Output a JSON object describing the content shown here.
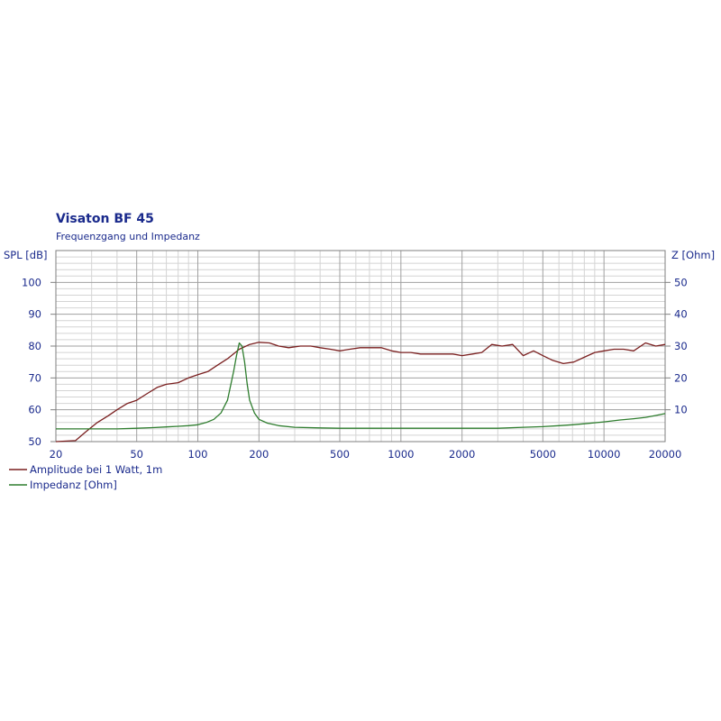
{
  "chart_data": {
    "type": "line",
    "title": "Visaton BF 45",
    "subtitle": "Frequenzgang und Impedanz",
    "ylabel_left": "SPL [dB]",
    "ylabel_right": "Z [Ohm]",
    "x_scale": "log",
    "xlim": [
      20,
      20000
    ],
    "ylim_left": [
      50,
      110
    ],
    "ylim_right": [
      0,
      60
    ],
    "x_ticks": [
      {
        "value": 20,
        "label": "20"
      },
      {
        "value": 50,
        "label": "50"
      },
      {
        "value": 100,
        "label": "100"
      },
      {
        "value": 200,
        "label": "200"
      },
      {
        "value": 500,
        "label": "500"
      },
      {
        "value": 1000,
        "label": "1000"
      },
      {
        "value": 2000,
        "label": "2000"
      },
      {
        "value": 5000,
        "label": "5000"
      },
      {
        "value": 10000,
        "label": "10000"
      },
      {
        "value": 20000,
        "label": "20000"
      }
    ],
    "y_ticks_left": [
      {
        "value": 50,
        "label": "50"
      },
      {
        "value": 60,
        "label": "60"
      },
      {
        "value": 70,
        "label": "70"
      },
      {
        "value": 80,
        "label": "80"
      },
      {
        "value": 90,
        "label": "90"
      },
      {
        "value": 100,
        "label": "100"
      }
    ],
    "y_ticks_right": [
      {
        "value": 10,
        "label": "10"
      },
      {
        "value": 20,
        "label": "20"
      },
      {
        "value": 30,
        "label": "30"
      },
      {
        "value": 40,
        "label": "40"
      },
      {
        "value": 50,
        "label": "50"
      }
    ],
    "grid": true,
    "legend_position": "bottom-left",
    "series": [
      {
        "name": "Amplitude bei 1 Watt, 1m",
        "axis": "left",
        "color": "#7a1f1f",
        "x": [
          20,
          25,
          28,
          32,
          36,
          40,
          45,
          50,
          56,
          63,
          70,
          80,
          90,
          100,
          112,
          125,
          140,
          160,
          180,
          200,
          225,
          250,
          280,
          320,
          360,
          400,
          450,
          500,
          560,
          630,
          700,
          800,
          900,
          1000,
          1120,
          1250,
          1400,
          1600,
          1800,
          2000,
          2250,
          2500,
          2800,
          3150,
          3550,
          4000,
          4500,
          5000,
          5600,
          6300,
          7100,
          8000,
          9000,
          10000,
          11200,
          12500,
          14000,
          16000,
          18000,
          20000
        ],
        "y": [
          50,
          50.3,
          53,
          56,
          58,
          60,
          62,
          63,
          65,
          67,
          68,
          68.5,
          70,
          71,
          72,
          74,
          76,
          79,
          80.5,
          81.2,
          81,
          80,
          79.5,
          80,
          80,
          79.5,
          79,
          78.5,
          79,
          79.5,
          79.5,
          79.5,
          78.5,
          78,
          78,
          77.5,
          77.5,
          77.5,
          77.5,
          77,
          77.5,
          78,
          80.5,
          80,
          80.5,
          77,
          78.5,
          77,
          75.5,
          74.5,
          75,
          76.5,
          78,
          78.5,
          79,
          79,
          78.5,
          81,
          80,
          80.5
        ]
      },
      {
        "name": "Impedanz [Ohm]",
        "axis": "right",
        "color": "#2e7d2e",
        "x": [
          20,
          30,
          40,
          50,
          60,
          70,
          80,
          90,
          100,
          110,
          120,
          130,
          140,
          150,
          155,
          160,
          165,
          170,
          175,
          180,
          190,
          200,
          220,
          250,
          300,
          400,
          500,
          700,
          1000,
          2000,
          3000,
          4000,
          5000,
          6000,
          7000,
          8000,
          10000,
          12000,
          14000,
          16000,
          18000,
          20000
        ],
        "y": [
          4,
          4,
          4,
          4.2,
          4.4,
          4.6,
          4.8,
          5,
          5.3,
          6,
          7,
          9,
          13,
          22,
          27,
          31,
          30,
          25,
          18,
          13,
          9,
          7,
          5.8,
          5,
          4.5,
          4.3,
          4.2,
          4.2,
          4.2,
          4.2,
          4.2,
          4.5,
          4.7,
          5,
          5.3,
          5.6,
          6.2,
          6.8,
          7.2,
          7.6,
          8.2,
          8.8
        ]
      }
    ]
  }
}
